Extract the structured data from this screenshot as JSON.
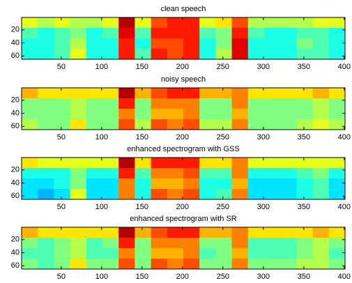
{
  "chart_data": [
    {
      "type": "heatmap",
      "title": "clean speech",
      "colormap": "jet",
      "y_reversed": true,
      "xlim": [
        1,
        401
      ],
      "ylim": [
        1,
        65
      ],
      "xticks": [
        50,
        100,
        150,
        200,
        250,
        300,
        350,
        400
      ],
      "yticks": [
        20,
        40,
        60
      ],
      "z": [
        [
          0.6,
          0.55,
          0.6,
          0.55,
          0.55,
          0.6,
          0.95,
          0.6,
          0.8,
          0.85,
          0.85,
          0.6,
          0.65,
          0.8,
          0.55,
          0.55,
          0.55,
          0.55,
          0.6,
          0.6
        ],
        [
          0.45,
          0.4,
          0.45,
          0.5,
          0.4,
          0.45,
          0.9,
          0.45,
          0.85,
          0.85,
          0.85,
          0.45,
          0.5,
          0.85,
          0.45,
          0.4,
          0.4,
          0.45,
          0.45,
          0.4
        ],
        [
          0.4,
          0.4,
          0.45,
          0.55,
          0.4,
          0.4,
          0.85,
          0.4,
          0.8,
          0.8,
          0.85,
          0.4,
          0.5,
          0.9,
          0.4,
          0.4,
          0.4,
          0.5,
          0.45,
          0.4
        ],
        [
          0.4,
          0.4,
          0.45,
          0.6,
          0.4,
          0.4,
          0.85,
          0.45,
          0.85,
          0.8,
          0.85,
          0.4,
          0.55,
          0.9,
          0.4,
          0.4,
          0.4,
          0.45,
          0.45,
          0.4
        ]
      ]
    },
    {
      "type": "heatmap",
      "title": "noisy speech",
      "colormap": "jet",
      "y_reversed": true,
      "xlim": [
        1,
        401
      ],
      "ylim": [
        1,
        65
      ],
      "xticks": [
        50,
        100,
        150,
        200,
        250,
        300,
        350,
        400
      ],
      "yticks": [
        20,
        40,
        60
      ],
      "z": [
        [
          0.7,
          0.65,
          0.65,
          0.65,
          0.65,
          0.65,
          0.95,
          0.7,
          0.8,
          0.85,
          0.85,
          0.7,
          0.7,
          0.75,
          0.65,
          0.65,
          0.65,
          0.65,
          0.7,
          0.65
        ],
        [
          0.5,
          0.5,
          0.5,
          0.55,
          0.5,
          0.5,
          0.85,
          0.5,
          0.75,
          0.75,
          0.75,
          0.5,
          0.5,
          0.75,
          0.5,
          0.5,
          0.5,
          0.5,
          0.55,
          0.5
        ],
        [
          0.5,
          0.5,
          0.5,
          0.55,
          0.5,
          0.5,
          0.75,
          0.5,
          0.7,
          0.7,
          0.75,
          0.5,
          0.5,
          0.7,
          0.5,
          0.5,
          0.5,
          0.5,
          0.55,
          0.5
        ],
        [
          0.55,
          0.5,
          0.5,
          0.65,
          0.5,
          0.5,
          0.8,
          0.55,
          0.8,
          0.75,
          0.8,
          0.55,
          0.55,
          0.75,
          0.5,
          0.5,
          0.5,
          0.55,
          0.6,
          0.55
        ]
      ]
    },
    {
      "type": "heatmap",
      "title": "enhanced spectrogram with GSS",
      "colormap": "jet",
      "y_reversed": true,
      "xlim": [
        1,
        401
      ],
      "ylim": [
        1,
        65
      ],
      "xticks": [
        50,
        100,
        150,
        200,
        250,
        300,
        350,
        400
      ],
      "yticks": [
        20,
        40,
        60
      ],
      "z": [
        [
          0.65,
          0.6,
          0.6,
          0.6,
          0.6,
          0.6,
          0.95,
          0.65,
          0.85,
          0.85,
          0.85,
          0.65,
          0.65,
          0.75,
          0.6,
          0.6,
          0.6,
          0.6,
          0.6,
          0.6
        ],
        [
          0.4,
          0.4,
          0.4,
          0.5,
          0.4,
          0.4,
          0.85,
          0.45,
          0.75,
          0.75,
          0.8,
          0.45,
          0.45,
          0.75,
          0.4,
          0.4,
          0.4,
          0.45,
          0.5,
          0.4
        ],
        [
          0.35,
          0.35,
          0.4,
          0.5,
          0.35,
          0.35,
          0.75,
          0.4,
          0.7,
          0.7,
          0.75,
          0.4,
          0.4,
          0.7,
          0.35,
          0.35,
          0.35,
          0.4,
          0.45,
          0.35
        ],
        [
          0.35,
          0.3,
          0.35,
          0.6,
          0.35,
          0.35,
          0.75,
          0.4,
          0.8,
          0.75,
          0.8,
          0.4,
          0.45,
          0.75,
          0.35,
          0.35,
          0.35,
          0.4,
          0.45,
          0.35
        ]
      ]
    },
    {
      "type": "heatmap",
      "title": "enhanced spectrogram with SR",
      "colormap": "jet",
      "y_reversed": true,
      "xlim": [
        1,
        401
      ],
      "ylim": [
        1,
        65
      ],
      "xticks": [
        50,
        100,
        150,
        200,
        250,
        300,
        350,
        400
      ],
      "yticks": [
        20,
        40,
        60
      ],
      "z": [
        [
          0.7,
          0.65,
          0.65,
          0.65,
          0.65,
          0.65,
          0.95,
          0.7,
          0.8,
          0.85,
          0.85,
          0.7,
          0.7,
          0.75,
          0.65,
          0.65,
          0.65,
          0.65,
          0.7,
          0.65
        ],
        [
          0.5,
          0.45,
          0.5,
          0.55,
          0.45,
          0.5,
          0.85,
          0.5,
          0.75,
          0.75,
          0.75,
          0.5,
          0.5,
          0.75,
          0.45,
          0.45,
          0.45,
          0.5,
          0.55,
          0.5
        ],
        [
          0.45,
          0.45,
          0.5,
          0.55,
          0.45,
          0.45,
          0.75,
          0.5,
          0.7,
          0.7,
          0.75,
          0.45,
          0.5,
          0.7,
          0.45,
          0.45,
          0.45,
          0.5,
          0.55,
          0.45
        ],
        [
          0.5,
          0.45,
          0.5,
          0.65,
          0.5,
          0.5,
          0.8,
          0.5,
          0.8,
          0.75,
          0.8,
          0.5,
          0.5,
          0.75,
          0.5,
          0.5,
          0.5,
          0.55,
          0.55,
          0.5
        ]
      ]
    }
  ]
}
